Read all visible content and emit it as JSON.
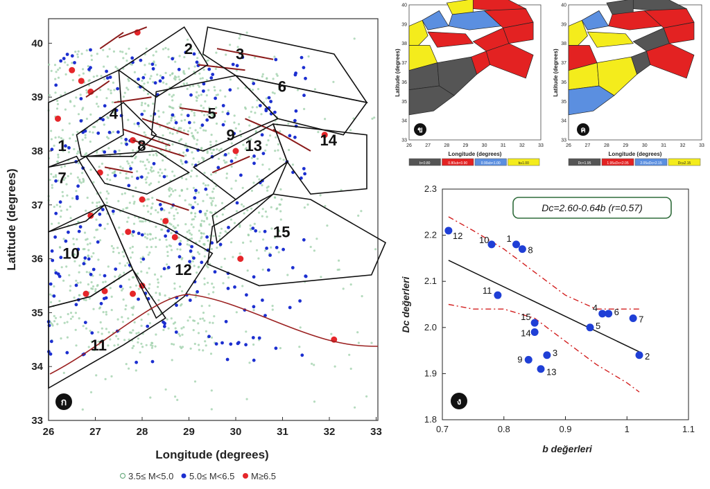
{
  "panel_a": {
    "badge": "ก",
    "xlabel": "Longitude (degrees)",
    "ylabel": "Latitude (degrees)",
    "xticks": [
      "26",
      "27",
      "28",
      "29",
      "30",
      "31",
      "32",
      "33"
    ],
    "yticks": [
      "40",
      "39",
      "38",
      "37",
      "36",
      "35",
      "34",
      "33"
    ],
    "zone_labels": [
      "1",
      "2",
      "3",
      "4",
      "5",
      "6",
      "7",
      "8",
      "9",
      "10",
      "11",
      "12",
      "13",
      "14",
      "15"
    ],
    "legend": [
      {
        "label": "3.5≤ M<5.0",
        "color": "#6fae83"
      },
      {
        "label": "5.0≤ M<6.5",
        "color": "#1c2fd0"
      },
      {
        "label": "M≥6.5",
        "color": "#e5262a"
      }
    ]
  },
  "panel_b": {
    "badge": "ข",
    "xlabel": "Longitude (degrees)",
    "ylabel": "Latitude (degrees)",
    "xticks": [
      "26",
      "27",
      "28",
      "29",
      "30",
      "31",
      "32",
      "33"
    ],
    "yticks": [
      "40",
      "39",
      "38",
      "37",
      "36",
      "35",
      "34",
      "33"
    ],
    "legend": [
      {
        "label": "b<0.80",
        "color": "#555555"
      },
      {
        "label": "0.80≤b<0.90",
        "color": "#e32222"
      },
      {
        "label": "0.90≤b<1.00",
        "color": "#5b8fe0"
      },
      {
        "label": "b≥1.00",
        "color": "#f4ec1c"
      }
    ]
  },
  "panel_c": {
    "badge": "ค",
    "xlabel": "Longitude (degrees)",
    "ylabel": "Latitude (degrees)",
    "xticks": [
      "26",
      "27",
      "28",
      "29",
      "30",
      "31",
      "32",
      "33"
    ],
    "yticks": [
      "40",
      "39",
      "38",
      "37",
      "36",
      "35",
      "34",
      "33"
    ],
    "legend": [
      {
        "label": "Dc<1.95",
        "color": "#555555"
      },
      {
        "label": "1.95≤Dc<2.05",
        "color": "#e32222"
      },
      {
        "label": "2.05≤Dc<2.15",
        "color": "#5b8fe0"
      },
      {
        "label": "Dc≥2.15",
        "color": "#f4ec1c"
      }
    ]
  },
  "panel_d": {
    "badge": "ง",
    "equation": "Dc=2.60-0.64b  (r=0.57)",
    "xlabel": "b değerleri",
    "ylabel": "Dc değerleri"
  },
  "chart_data": {
    "type": "scatter",
    "xlabel": "b değerleri",
    "ylabel": "Dc değerleri",
    "xlim": [
      0.7,
      1.1
    ],
    "ylim": [
      1.8,
      2.3
    ],
    "xticks": [
      0.7,
      0.8,
      0.9,
      1.0,
      1.1
    ],
    "yticks": [
      1.8,
      1.9,
      2.0,
      2.1,
      2.2,
      2.3
    ],
    "annotation": "Dc=2.60-0.64b (r=0.57)",
    "fit": {
      "slope": -0.64,
      "intercept": 2.6
    },
    "points": [
      {
        "label": "1",
        "x": 0.82,
        "y": 2.18
      },
      {
        "label": "2",
        "x": 1.02,
        "y": 1.94
      },
      {
        "label": "3",
        "x": 0.87,
        "y": 1.94
      },
      {
        "label": "4",
        "x": 0.96,
        "y": 2.03
      },
      {
        "label": "5",
        "x": 0.94,
        "y": 2.0
      },
      {
        "label": "6",
        "x": 0.97,
        "y": 2.03
      },
      {
        "label": "7",
        "x": 1.01,
        "y": 2.02
      },
      {
        "label": "8",
        "x": 0.83,
        "y": 2.17
      },
      {
        "label": "9",
        "x": 0.84,
        "y": 1.93
      },
      {
        "label": "10",
        "x": 0.78,
        "y": 2.18
      },
      {
        "label": "11",
        "x": 0.79,
        "y": 2.07
      },
      {
        "label": "12",
        "x": 0.71,
        "y": 2.21
      },
      {
        "label": "13",
        "x": 0.86,
        "y": 1.91
      },
      {
        "label": "14",
        "x": 0.85,
        "y": 1.99
      },
      {
        "label": "15",
        "x": 0.85,
        "y": 2.01
      }
    ],
    "upper_band": [
      [
        0.71,
        2.24
      ],
      [
        0.75,
        2.21
      ],
      [
        0.8,
        2.17
      ],
      [
        0.85,
        2.12
      ],
      [
        0.9,
        2.07
      ],
      [
        0.95,
        2.04
      ],
      [
        1.0,
        2.04
      ],
      [
        1.02,
        2.04
      ]
    ],
    "lower_band": [
      [
        0.71,
        2.05
      ],
      [
        0.75,
        2.04
      ],
      [
        0.8,
        2.04
      ],
      [
        0.85,
        2.02
      ],
      [
        0.9,
        1.97
      ],
      [
        0.95,
        1.92
      ],
      [
        1.0,
        1.88
      ],
      [
        1.02,
        1.86
      ]
    ]
  }
}
